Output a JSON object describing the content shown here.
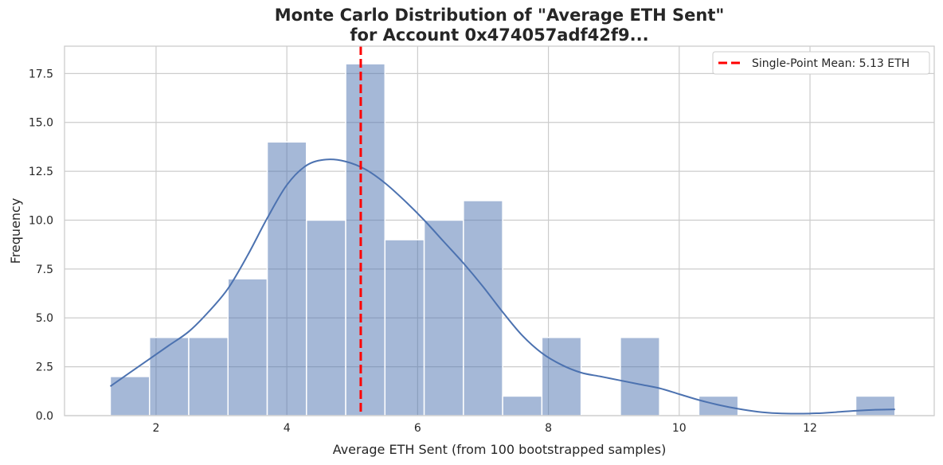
{
  "chart_data": {
    "type": "bar",
    "title_line1": "Monte Carlo Distribution of \"Average ETH Sent\"",
    "title_line2": "for Account 0x474057adf42f9...",
    "xlabel": "Average ETH Sent (from 100 bootstrapped samples)",
    "ylabel": "Frequency",
    "xlim": [
      0.6,
      13.9
    ],
    "ylim": [
      0,
      18.9
    ],
    "x_ticks": [
      2,
      4,
      6,
      8,
      10,
      12
    ],
    "x_tick_labels": [
      "2",
      "4",
      "6",
      "8",
      "10",
      "12"
    ],
    "y_ticks": [
      0,
      2.5,
      5,
      7.5,
      10,
      12.5,
      15,
      17.5
    ],
    "y_tick_labels": [
      "0.0",
      "2.5",
      "5.0",
      "7.5",
      "10.0",
      "12.5",
      "15.0",
      "17.5"
    ],
    "grid": true,
    "bin_edges": [
      1.3,
      1.9,
      2.5,
      3.1,
      3.7,
      4.3,
      4.9,
      5.5,
      6.1,
      6.7,
      7.3,
      7.9,
      8.5,
      9.1,
      9.7,
      10.3,
      10.9,
      11.5,
      12.1,
      12.7,
      13.3
    ],
    "counts": [
      2,
      4,
      4,
      7,
      14,
      10,
      18,
      9,
      10,
      11,
      1,
      4,
      0,
      4,
      0,
      1,
      0,
      0,
      0,
      1
    ],
    "bar_color": "#4c72b0",
    "kde": {
      "x": [
        1.3,
        1.6,
        1.9,
        2.2,
        2.5,
        2.8,
        3.1,
        3.4,
        3.7,
        4.0,
        4.3,
        4.6,
        4.9,
        5.2,
        5.5,
        5.8,
        6.1,
        6.4,
        6.7,
        7.0,
        7.3,
        7.6,
        7.9,
        8.2,
        8.5,
        8.8,
        9.1,
        9.4,
        9.7,
        10.0,
        10.3,
        10.6,
        10.9,
        11.2,
        11.5,
        11.8,
        12.1,
        12.4,
        12.7,
        13.0,
        13.3
      ],
      "y": [
        1.5,
        2.2,
        2.9,
        3.6,
        4.3,
        5.3,
        6.5,
        8.2,
        10.1,
        11.8,
        12.8,
        13.1,
        13.0,
        12.6,
        11.9,
        11.0,
        10.0,
        8.9,
        7.8,
        6.6,
        5.3,
        4.1,
        3.2,
        2.6,
        2.2,
        2.0,
        1.8,
        1.6,
        1.4,
        1.1,
        0.8,
        0.55,
        0.35,
        0.2,
        0.12,
        0.1,
        0.12,
        0.18,
        0.25,
        0.3,
        0.32
      ],
      "color": "#4c72b0"
    },
    "mean_line": {
      "x": 5.13,
      "color": "#ff0000",
      "label": "Single-Point Mean: 5.13 ETH"
    },
    "legend_position": "top-right"
  }
}
